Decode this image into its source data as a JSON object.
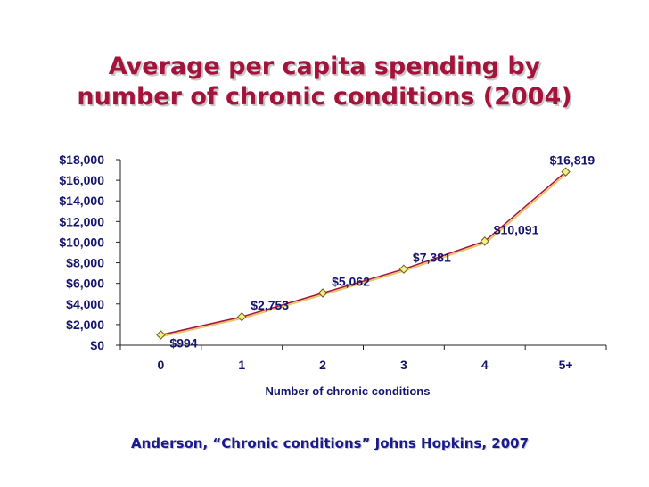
{
  "title_line1": "Average per capita spending by",
  "title_line2": "number of chronic conditions (2004)",
  "source": "Anderson, “Chronic conditions” Johns Hopkins, 2007",
  "colors": {
    "title": "#a3133c",
    "text": "#14146e",
    "line_main": "#a3133c",
    "line_shadow": "#e8c56a",
    "marker_fill": "#f2f088"
  },
  "chart_data": {
    "type": "line",
    "title": "Average per capita spending by number of chronic conditions (2004)",
    "xlabel": "Number of chronic conditions",
    "ylabel": "",
    "categories": [
      "0",
      "1",
      "2",
      "3",
      "4",
      "5+"
    ],
    "series": [
      {
        "name": "Per capita spending",
        "values": [
          994,
          2753,
          5062,
          7381,
          10091,
          16819
        ]
      }
    ],
    "data_labels": [
      "$994",
      "$2,753",
      "$5,062",
      "$7,381",
      "$10,091",
      "$16,819"
    ],
    "ylim": [
      0,
      18000
    ],
    "yticks": [
      0,
      2000,
      4000,
      6000,
      8000,
      10000,
      12000,
      14000,
      16000,
      18000
    ],
    "ytick_labels": [
      "$0",
      "$2,000",
      "$4,000",
      "$6,000",
      "$8,000",
      "$10,000",
      "$12,000",
      "$14,000",
      "$16,000",
      "$18,000"
    ],
    "grid": false,
    "legend": "none"
  }
}
